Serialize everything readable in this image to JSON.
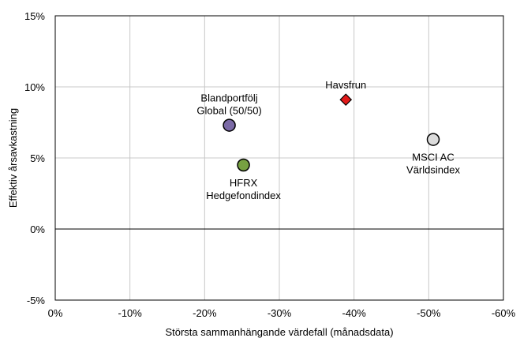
{
  "chart_data": {
    "type": "scatter",
    "xlabel": "Största sammanhängande värdefall (månadsdata)",
    "ylabel": "Effektiv årsavkastning",
    "xlim": [
      0,
      -60
    ],
    "ylim": [
      -5,
      15
    ],
    "x_ticks": [
      0,
      -10,
      -20,
      -30,
      -40,
      -50,
      -60
    ],
    "x_tick_labels": [
      "0%",
      "-10%",
      "-20%",
      "-30%",
      "-40%",
      "-50%",
      "-60%"
    ],
    "y_ticks": [
      -5,
      0,
      5,
      10,
      15
    ],
    "y_tick_labels": [
      "-5%",
      "0%",
      "5%",
      "10%",
      "15%"
    ],
    "grid": true,
    "points": [
      {
        "label_lines": [
          "Blandportfölj",
          "Global (50/50)"
        ],
        "x": -23.3,
        "y": 7.3,
        "marker": "circle",
        "color": "#7b6aa6",
        "label_pos": "above"
      },
      {
        "label_lines": [
          "Havsfrun"
        ],
        "x": -38.9,
        "y": 9.1,
        "marker": "diamond",
        "color": "#e21a1a",
        "label_pos": "above"
      },
      {
        "label_lines": [
          "HFRX",
          "Hedgefondindex"
        ],
        "x": -25.2,
        "y": 4.5,
        "marker": "circle",
        "color": "#77a041",
        "label_pos": "below"
      },
      {
        "label_lines": [
          "MSCI AC",
          "Världsindex"
        ],
        "x": -50.6,
        "y": 6.3,
        "marker": "circle",
        "color": "#dcdcdc",
        "label_pos": "below"
      }
    ]
  }
}
